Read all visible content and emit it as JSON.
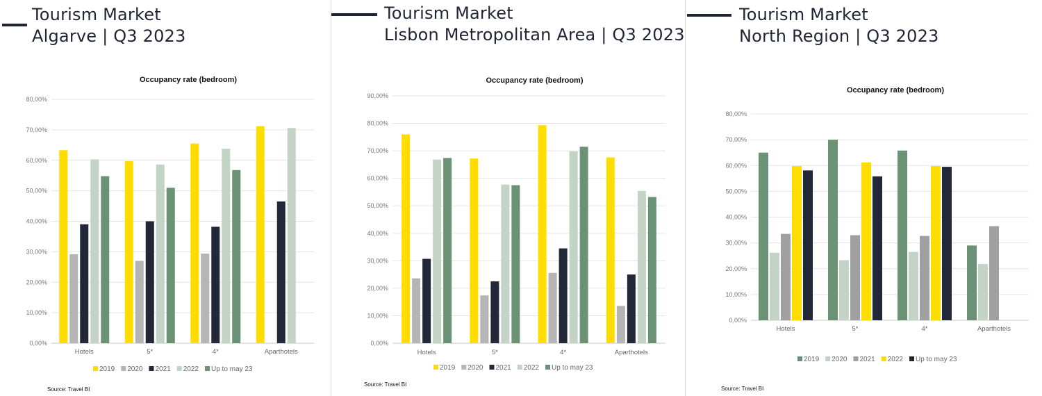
{
  "source_label": "Source: Travel BI",
  "chart_data": [
    {
      "type": "bar",
      "header": [
        "Tourism Market",
        "Algarve | Q3 2023"
      ],
      "title": "Occupancy rate (bedroom)",
      "xlabel": "",
      "ylabel": "",
      "ylim": [
        0,
        80
      ],
      "y_ticks": [
        "0,00%",
        "10,00%",
        "20,00%",
        "30,00%",
        "40,00%",
        "50,00%",
        "60,00%",
        "70,00%",
        "80,00%"
      ],
      "categories": [
        "Hotels",
        "5*",
        "4*",
        "Aparthotels"
      ],
      "legend_position": "bottom",
      "series": [
        {
          "name": "2019",
          "color": "#ffdd00",
          "values": [
            63.3,
            59.7,
            65.5,
            71.2
          ]
        },
        {
          "name": "2020",
          "color": "#b5b5b5",
          "values": [
            29.2,
            27.0,
            29.4,
            null
          ]
        },
        {
          "name": "2021",
          "color": "#232838",
          "values": [
            39.0,
            40.0,
            38.2,
            46.5
          ]
        },
        {
          "name": "2022",
          "color": "#c3d4c6",
          "values": [
            60.3,
            58.6,
            63.8,
            70.6
          ]
        },
        {
          "name": "Up to may 23",
          "color": "#6b9274",
          "values": [
            54.8,
            51.0,
            56.8,
            null
          ]
        }
      ]
    },
    {
      "type": "bar",
      "header": [
        "Tourism Market",
        "Lisbon Metropolitan Area | Q3 2023"
      ],
      "title": "Occupancy rate (bedroom)",
      "xlabel": "",
      "ylabel": "",
      "ylim": [
        0,
        90
      ],
      "y_ticks": [
        "0,00%",
        "10,00%",
        "20,00%",
        "30,00%",
        "40,00%",
        "50,00%",
        "60,00%",
        "70,00%",
        "80,00%",
        "90,00%"
      ],
      "categories": [
        "Hotels",
        "5*",
        "4*",
        "Aparthotels"
      ],
      "legend_position": "bottom",
      "series": [
        {
          "name": "2019",
          "color": "#ffdd00",
          "values": [
            76.0,
            67.2,
            79.3,
            67.6
          ]
        },
        {
          "name": "2020",
          "color": "#b5b5b5",
          "values": [
            23.6,
            17.4,
            25.6,
            13.6
          ]
        },
        {
          "name": "2021",
          "color": "#232838",
          "values": [
            30.7,
            22.5,
            34.5,
            25.0
          ]
        },
        {
          "name": "2022",
          "color": "#c3d4c6",
          "values": [
            66.8,
            57.7,
            69.8,
            55.4
          ]
        },
        {
          "name": "Up to may 23",
          "color": "#6b9274",
          "values": [
            67.4,
            57.5,
            71.5,
            53.2
          ]
        }
      ]
    },
    {
      "type": "bar",
      "header": [
        "Tourism Market",
        "North Region | Q3 2023"
      ],
      "title": "Occupancy rate (bedroom)",
      "xlabel": "",
      "ylabel": "",
      "ylim": [
        0,
        80
      ],
      "y_ticks": [
        "0,00%",
        "10,00%",
        "20,00%",
        "30,00%",
        "40,00%",
        "50,00%",
        "60,00%",
        "70,00%",
        "80,00%"
      ],
      "categories": [
        "Hotels",
        "5*",
        "4*",
        "Aparthotels"
      ],
      "legend_position": "bottom",
      "series": [
        {
          "name": "2019",
          "color": "#6b9274",
          "values": [
            65.0,
            70.0,
            65.8,
            29.0
          ]
        },
        {
          "name": "2020",
          "color": "#c3d4c6",
          "values": [
            26.2,
            23.3,
            26.5,
            21.8
          ]
        },
        {
          "name": "2021",
          "color": "#a0a0a0",
          "values": [
            33.5,
            33.0,
            32.7,
            36.5
          ]
        },
        {
          "name": "2022",
          "color": "#ffdd00",
          "values": [
            59.8,
            61.2,
            59.8,
            null
          ]
        },
        {
          "name": "Up to may 23",
          "color": "#232838",
          "values": [
            58.1,
            55.8,
            59.5,
            null
          ]
        }
      ]
    }
  ]
}
